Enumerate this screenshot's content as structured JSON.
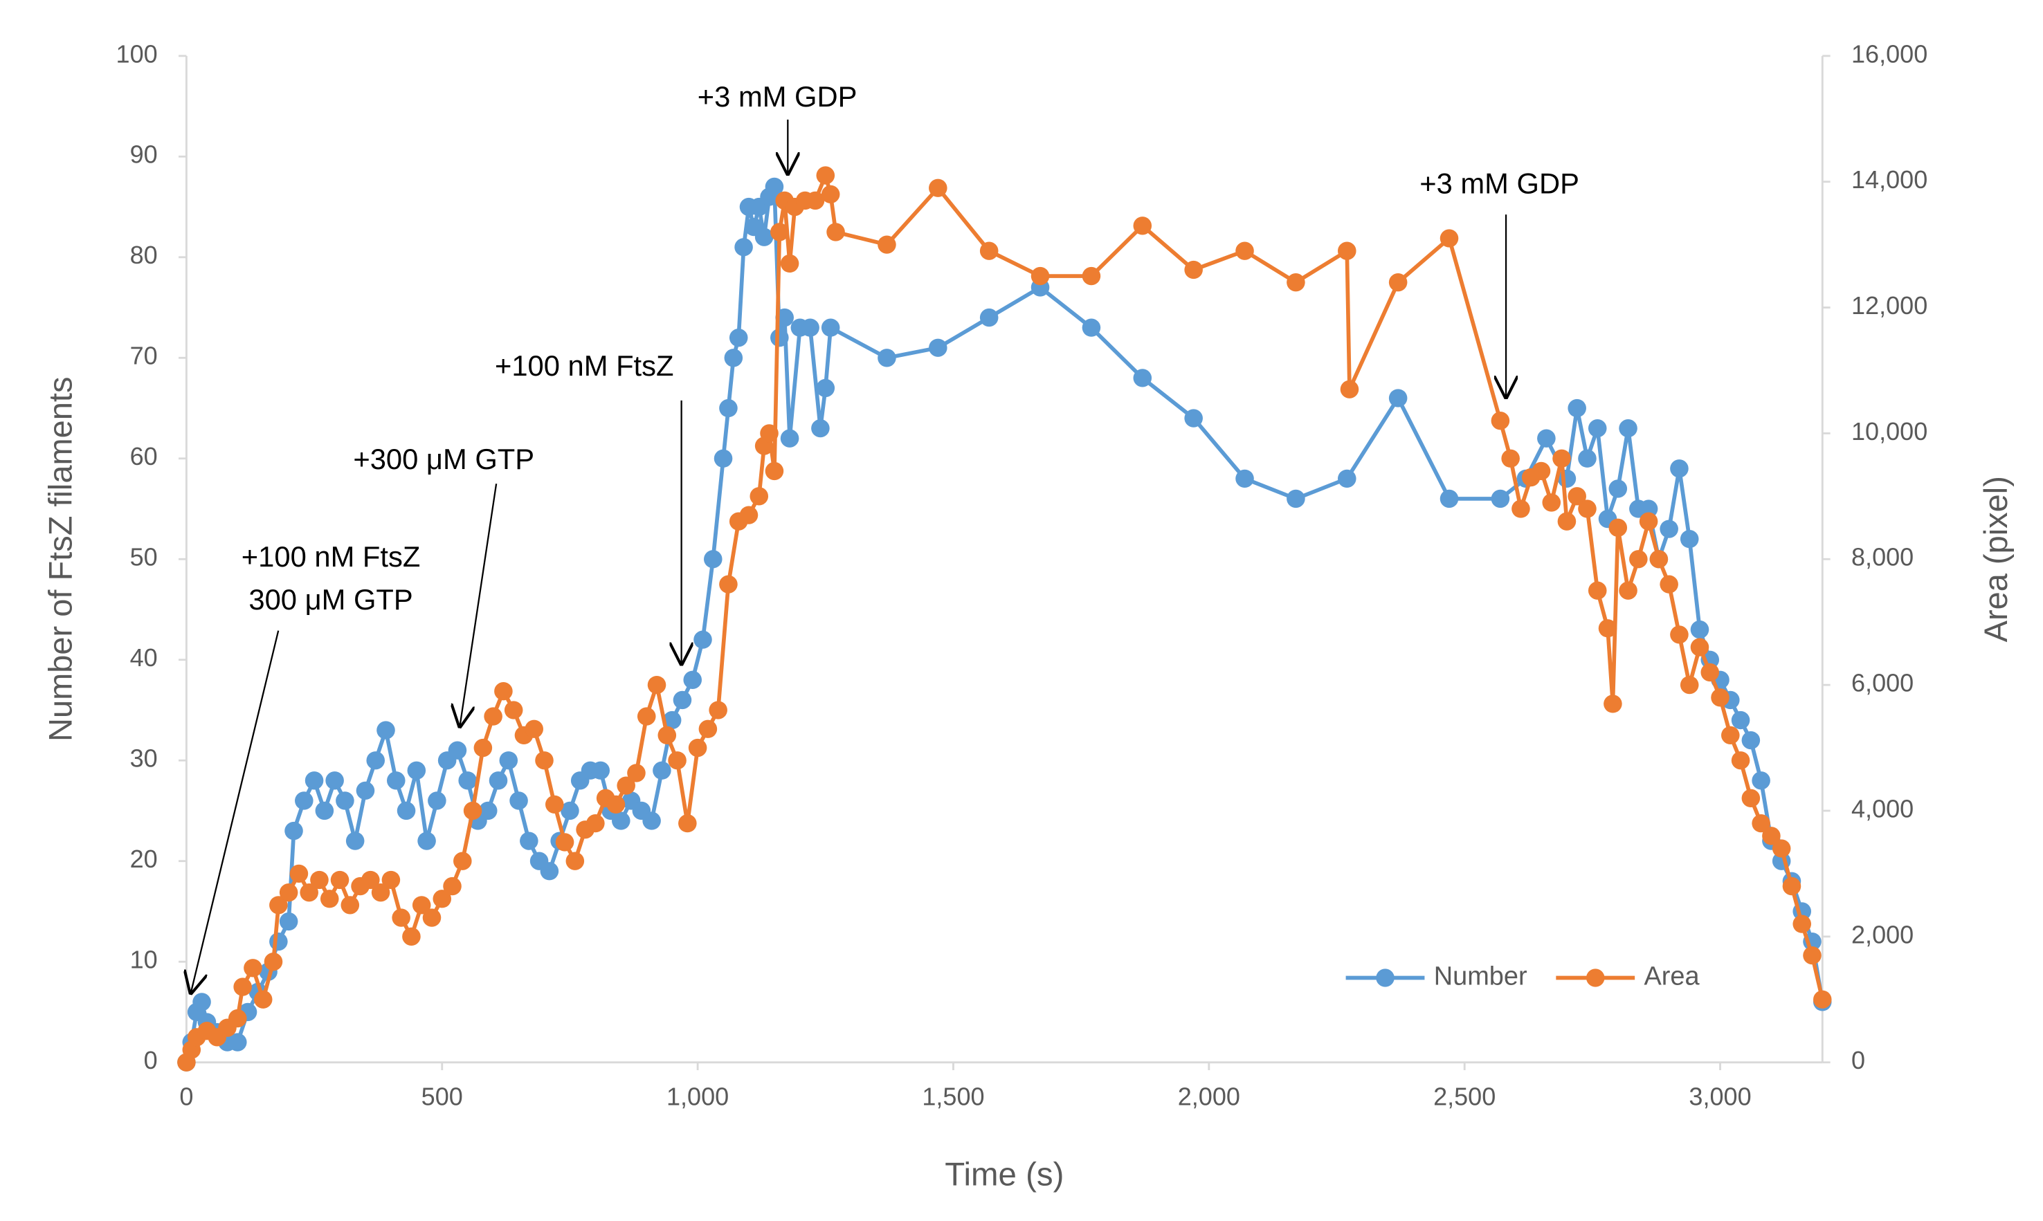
{
  "chart_data": {
    "type": "line",
    "xlabel": "Time (s)",
    "ylabel": "Number of FtsZ filaments",
    "y2label": "Area (pixel)",
    "xlim": [
      0,
      3200
    ],
    "xticks": [
      0,
      500,
      {
        "value": 1000,
        "label": "1,000"
      },
      {
        "value": 1500,
        "label": "1,500"
      },
      {
        "value": 2000,
        "label": "2,000"
      },
      {
        "value": 2500,
        "label": "2,500"
      },
      {
        "value": 3000,
        "label": "3,000"
      }
    ],
    "ylim": [
      0,
      100
    ],
    "yticks": [
      0,
      10,
      20,
      30,
      40,
      50,
      60,
      70,
      80,
      90,
      100
    ],
    "y2lim": [
      0,
      16000
    ],
    "y2ticks": [
      0,
      {
        "value": 2000,
        "label": "2,000"
      },
      {
        "value": 4000,
        "label": "4,000"
      },
      {
        "value": 6000,
        "label": "6,000"
      },
      {
        "value": 8000,
        "label": "8,000"
      },
      {
        "value": 10000,
        "label": "10,000"
      },
      {
        "value": 12000,
        "label": "12,000"
      },
      {
        "value": 14000,
        "label": "14,000"
      },
      {
        "value": 16000,
        "label": "16,000"
      }
    ],
    "legend": "lower right",
    "annotations": [
      {
        "lines": [
          "+100 nM FtsZ",
          "300 μM GTP"
        ]
      },
      {
        "lines": [
          "+300 μM GTP"
        ]
      },
      {
        "lines": [
          "+100 nM FtsZ"
        ]
      },
      {
        "lines": [
          "+3 mM GDP"
        ]
      },
      {
        "lines": [
          "+3 mM GDP"
        ]
      }
    ],
    "series": [
      {
        "name": "Number",
        "color": "#5b9bd5",
        "axis": "y",
        "x": [
          0,
          10,
          20,
          30,
          40,
          60,
          80,
          100,
          120,
          140,
          160,
          180,
          200,
          210,
          230,
          250,
          270,
          290,
          310,
          330,
          350,
          370,
          390,
          410,
          430,
          450,
          470,
          490,
          510,
          530,
          550,
          570,
          590,
          610,
          630,
          650,
          670,
          690,
          710,
          730,
          750,
          770,
          790,
          810,
          830,
          850,
          870,
          890,
          910,
          930,
          950,
          970,
          990,
          1010,
          1030,
          1050,
          1060,
          1070,
          1080,
          1090,
          1100,
          1110,
          1120,
          1130,
          1140,
          1150,
          1160,
          1170,
          1180,
          1200,
          1220,
          1240,
          1250,
          1260,
          1370,
          1470,
          1570,
          1670,
          1770,
          1870,
          1970,
          2070,
          2170,
          2270,
          2370,
          2470,
          2570,
          2620,
          2660,
          2700,
          2720,
          2740,
          2760,
          2780,
          2800,
          2820,
          2840,
          2860,
          2880,
          2900,
          2920,
          2940,
          2960,
          2980,
          3000,
          3020,
          3040,
          3060,
          3080,
          3100,
          3120,
          3140,
          3160,
          3180,
          3200
        ],
        "values": [
          0,
          2,
          5,
          6,
          4,
          3,
          2,
          2,
          5,
          7,
          9,
          12,
          14,
          23,
          26,
          28,
          25,
          28,
          26,
          22,
          27,
          30,
          33,
          28,
          25,
          29,
          22,
          26,
          30,
          31,
          28,
          24,
          25,
          28,
          30,
          26,
          22,
          20,
          19,
          22,
          25,
          28,
          29,
          29,
          25,
          24,
          26,
          25,
          24,
          29,
          34,
          36,
          38,
          42,
          50,
          60,
          65,
          70,
          72,
          81,
          85,
          83,
          85,
          82,
          86,
          87,
          72,
          74,
          62,
          73,
          73,
          63,
          67,
          73,
          70,
          71,
          74,
          77,
          73,
          68,
          64,
          58,
          56,
          58,
          66,
          56,
          56,
          58,
          62,
          58,
          65,
          60,
          63,
          54,
          57,
          63,
          55,
          55,
          50,
          53,
          59,
          52,
          43,
          40,
          38,
          36,
          34,
          32,
          28,
          22,
          20,
          18,
          15,
          12,
          6
        ]
      },
      {
        "name": "Area",
        "color": "#ed7d31",
        "axis": "y2",
        "x": [
          0,
          10,
          20,
          40,
          60,
          80,
          100,
          110,
          130,
          150,
          170,
          180,
          200,
          220,
          240,
          260,
          280,
          300,
          320,
          340,
          360,
          380,
          400,
          420,
          440,
          460,
          480,
          500,
          520,
          540,
          560,
          580,
          600,
          620,
          640,
          660,
          680,
          700,
          720,
          740,
          760,
          780,
          800,
          820,
          840,
          860,
          880,
          900,
          920,
          940,
          960,
          980,
          1000,
          1020,
          1040,
          1060,
          1080,
          1100,
          1120,
          1130,
          1140,
          1150,
          1160,
          1170,
          1180,
          1190,
          1210,
          1230,
          1250,
          1260,
          1270,
          1370,
          1470,
          1570,
          1670,
          1770,
          1870,
          1970,
          2070,
          2170,
          2270,
          2275,
          2370,
          2470,
          2570,
          2590,
          2610,
          2630,
          2650,
          2670,
          2690,
          2700,
          2720,
          2740,
          2760,
          2780,
          2790,
          2800,
          2820,
          2840,
          2860,
          2880,
          2900,
          2920,
          2940,
          2960,
          2980,
          3000,
          3020,
          3040,
          3060,
          3080,
          3100,
          3120,
          3140,
          3160,
          3180,
          3200
        ],
        "values": [
          0,
          200,
          400,
          500,
          400,
          550,
          700,
          1200,
          1500,
          1000,
          1600,
          2500,
          2700,
          3000,
          2700,
          2900,
          2600,
          2900,
          2500,
          2800,
          2900,
          2700,
          2900,
          2300,
          2000,
          2500,
          2300,
          2600,
          2800,
          3200,
          4000,
          5000,
          5500,
          5900,
          5600,
          5200,
          5300,
          4800,
          4100,
          3500,
          3200,
          3700,
          3800,
          4200,
          4100,
          4400,
          4600,
          5500,
          6000,
          5200,
          4800,
          3800,
          5000,
          5300,
          5600,
          7600,
          8600,
          8700,
          9000,
          9800,
          10000,
          9400,
          13200,
          13700,
          12700,
          13600,
          13700,
          13700,
          14100,
          13800,
          13200,
          13000,
          13900,
          12900,
          12500,
          12500,
          13300,
          12600,
          12900,
          12400,
          12900,
          10700,
          12400,
          13100,
          10200,
          9600,
          8800,
          9300,
          9400,
          8900,
          9600,
          8600,
          9000,
          8800,
          7500,
          6900,
          5700,
          8500,
          7500,
          8000,
          8600,
          8000,
          7600,
          6800,
          6000,
          6600,
          6200,
          5800,
          5200,
          4800,
          4200,
          3800,
          3600,
          3400,
          2800,
          2200,
          1700,
          1000
        ]
      }
    ]
  }
}
